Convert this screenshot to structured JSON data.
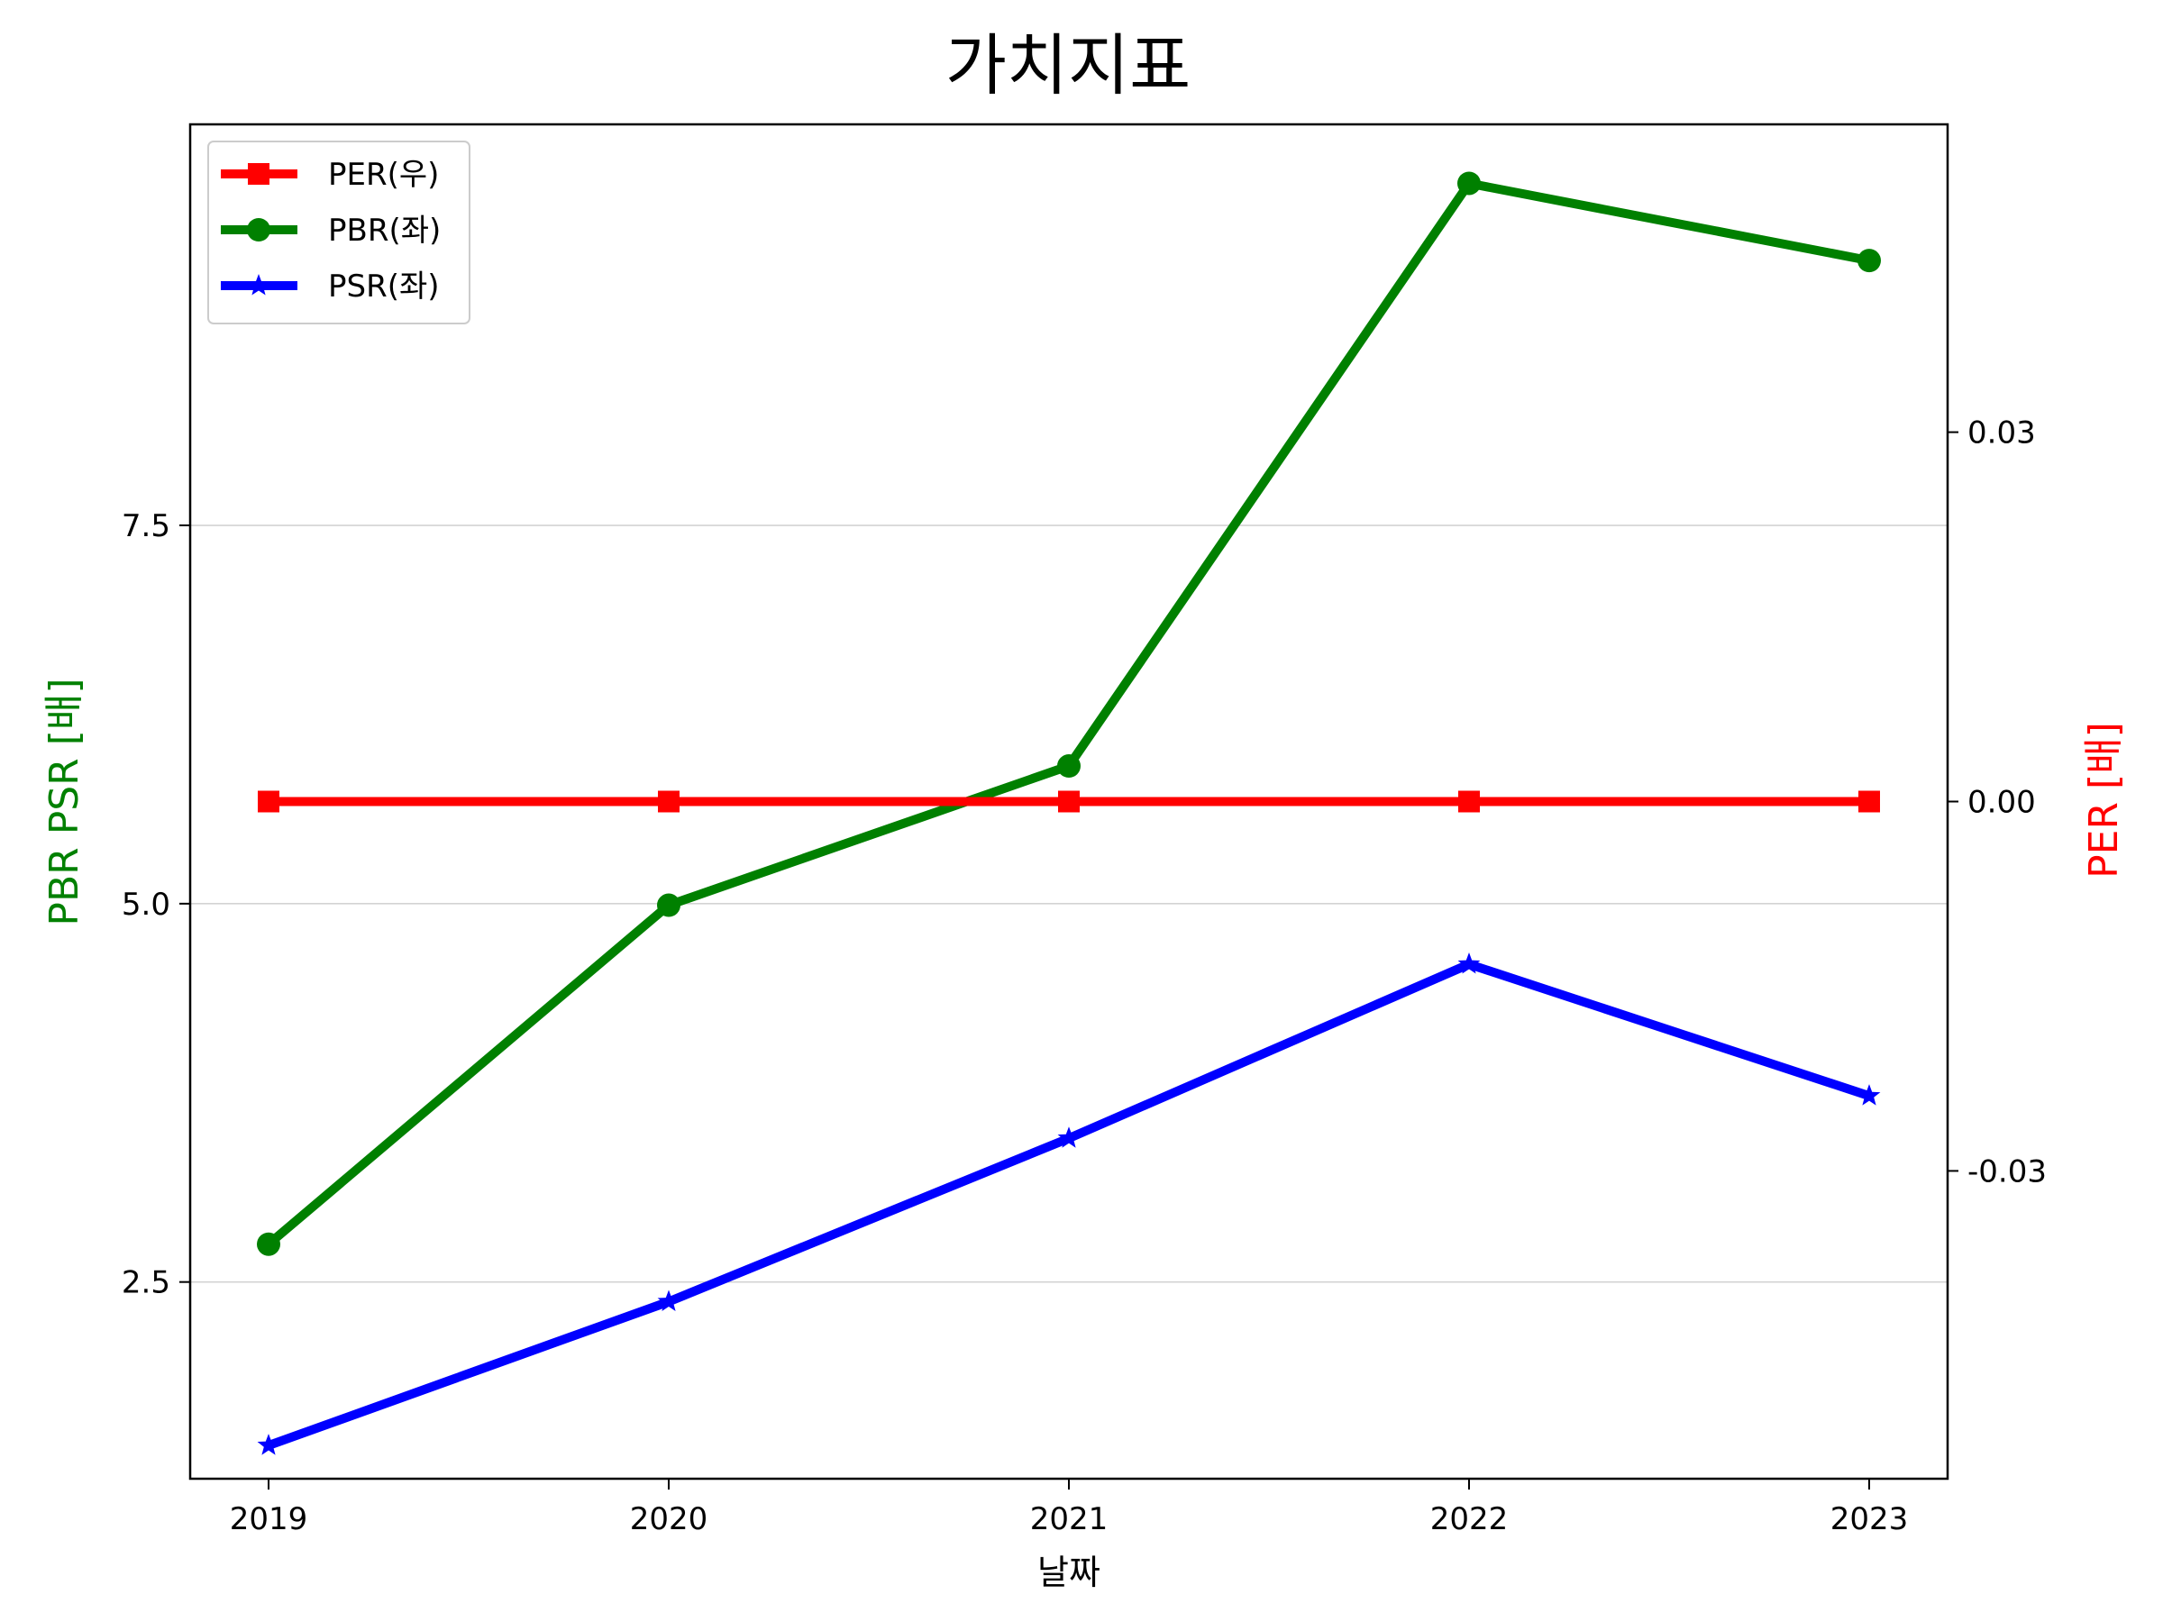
{
  "chart_data": {
    "type": "line",
    "title": "가치지표",
    "xlabel": "날짜",
    "ylabel_left": "PBR PSR [배]",
    "ylabel_right": "PER [배]",
    "x": [
      "2019",
      "2020",
      "2021",
      "2022",
      "2023"
    ],
    "y_left": {
      "lim": [
        1.2,
        10.15
      ],
      "ticks": [
        2.5,
        5.0,
        7.5
      ],
      "tick_labels": [
        "2.5",
        "5.0",
        "7.5"
      ]
    },
    "y_right": {
      "lim": [
        -0.055,
        0.055
      ],
      "ticks": [
        0.03,
        0.0,
        -0.03
      ],
      "tick_labels": [
        "0.03",
        "0.00",
        "-0.03"
      ]
    },
    "grid": "horizontal",
    "legend": "top-left",
    "series": [
      {
        "name": "PER(우)",
        "axis": "right",
        "color": "#ff0000",
        "marker": "square",
        "values": [
          0.0,
          0.0,
          0.0,
          0.0,
          0.0
        ]
      },
      {
        "name": "PBR(좌)",
        "axis": "left",
        "color": "#008000",
        "marker": "circle",
        "values": [
          2.75,
          4.99,
          5.91,
          9.76,
          9.25
        ]
      },
      {
        "name": "PSR(좌)",
        "axis": "left",
        "color": "#0000ff",
        "marker": "star",
        "values": [
          1.42,
          2.37,
          3.45,
          4.6,
          3.73
        ]
      }
    ]
  }
}
